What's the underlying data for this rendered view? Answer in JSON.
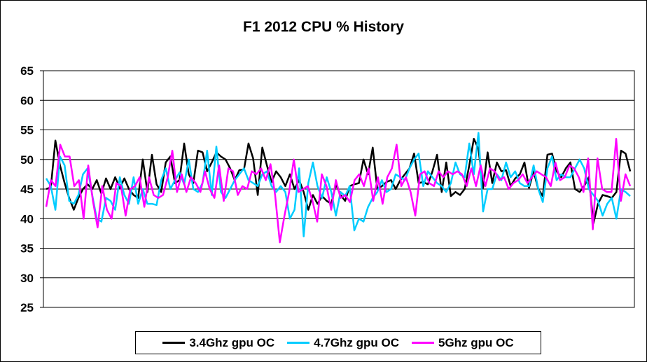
{
  "chart_data": {
    "type": "line",
    "title": "F1 2012 CPU % History",
    "xlabel": "",
    "ylabel": "",
    "ylim": [
      25,
      65
    ],
    "yticks": [
      25,
      30,
      35,
      40,
      45,
      50,
      55,
      60,
      65
    ],
    "grid": true,
    "legend_position": "bottom",
    "series": [
      {
        "name": "3.4Ghz gpu OC",
        "color": "#000000",
        "values": [
          45.0,
          45.3,
          53.2,
          49.0,
          46.0,
          43.5,
          41.5,
          43.5,
          45.0,
          45.8,
          45.0,
          46.5,
          44.2,
          46.8,
          45.0,
          47.0,
          45.2,
          46.8,
          45.0,
          44.0,
          43.5,
          50.0,
          44.5,
          50.8,
          45.8,
          44.5,
          49.5,
          50.5,
          46.0,
          46.5,
          52.7,
          47.5,
          46.0,
          51.5,
          51.2,
          48.0,
          49.5,
          51.2,
          50.5,
          50.0,
          48.5,
          46.5,
          48.2,
          48.3,
          52.7,
          50.2,
          44.0,
          52.0,
          49.0,
          46.2,
          48.0,
          47.0,
          45.5,
          47.5,
          45.0,
          46.5,
          44.5,
          41.5,
          44.0,
          42.5,
          43.8,
          43.0,
          42.5,
          45.8,
          44.0,
          43.0,
          45.5,
          45.8,
          46.0,
          50.0,
          47.5,
          52.0,
          45.0,
          45.5,
          46.2,
          46.5,
          45.0,
          46.5,
          47.5,
          48.5,
          51.0,
          46.0,
          46.2,
          45.8,
          48.0,
          50.8,
          44.5,
          49.5,
          43.8,
          44.5,
          44.0,
          45.0,
          49.0,
          53.5,
          51.8,
          45.2,
          51.2,
          46.0,
          49.5,
          48.0,
          48.2,
          45.5,
          46.8,
          47.5,
          49.5,
          45.2,
          48.0,
          45.0,
          43.8,
          50.8,
          51.0,
          48.0,
          47.0,
          48.5,
          49.5,
          45.0,
          44.5,
          45.5,
          47.0,
          39.2,
          42.5,
          44.0,
          43.8,
          43.5,
          44.5,
          51.5,
          51.0,
          48.0
        ]
      },
      {
        "name": "4.7Ghz gpu OC",
        "color": "#00CCFF",
        "values": [
          46.8,
          45.5,
          41.5,
          50.5,
          49.0,
          43.0,
          42.5,
          44.0,
          47.5,
          48.5,
          44.0,
          40.0,
          39.5,
          43.5,
          43.0,
          41.5,
          47.0,
          44.0,
          42.5,
          47.0,
          42.5,
          45.0,
          42.5,
          42.5,
          42.3,
          46.5,
          48.5,
          45.0,
          46.5,
          47.8,
          45.8,
          50.0,
          45.0,
          44.5,
          46.0,
          51.5,
          44.0,
          52.2,
          44.5,
          43.5,
          45.0,
          46.5,
          47.5,
          48.5,
          46.5,
          46.0,
          45.5,
          47.5,
          48.0,
          45.5,
          44.5,
          45.5,
          44.5,
          40.0,
          41.5,
          48.5,
          37.0,
          46.0,
          49.5,
          45.5,
          43.5,
          47.0,
          44.5,
          40.5,
          44.5,
          43.8,
          45.5,
          38.0,
          40.0,
          39.5,
          42.0,
          43.5,
          44.5,
          46.5,
          44.5,
          45.0,
          47.5,
          47.0,
          46.5,
          48.5,
          50.0,
          51.0,
          45.5,
          48.0,
          47.0,
          46.0,
          45.5,
          44.5,
          46.0,
          49.5,
          47.5,
          47.0,
          52.7,
          47.5,
          54.5,
          41.2,
          45.0,
          45.0,
          47.5,
          46.5,
          49.5,
          47.0,
          48.0,
          46.0,
          45.5,
          45.5,
          49.0,
          45.0,
          42.8,
          48.5,
          50.5,
          46.5,
          47.5,
          47.0,
          47.0,
          48.5,
          50.0,
          48.5,
          45.0,
          44.0,
          43.0,
          40.5,
          42.5,
          43.5,
          40.0,
          45.0,
          44.5,
          43.8
        ]
      },
      {
        "name": "5Ghz gpu OC",
        "color": "#FF00FF",
        "values": [
          42.0,
          46.5,
          45.5,
          52.5,
          50.5,
          50.5,
          45.5,
          46.5,
          40.0,
          49.0,
          43.0,
          38.5,
          45.5,
          41.5,
          40.0,
          46.0,
          45.5,
          40.5,
          45.0,
          45.5,
          47.0,
          42.0,
          47.0,
          44.0,
          43.5,
          44.0,
          47.0,
          51.5,
          44.5,
          47.5,
          44.5,
          47.0,
          46.0,
          44.5,
          48.0,
          45.0,
          43.5,
          49.0,
          43.0,
          48.5,
          48.0,
          44.0,
          45.5,
          45.0,
          48.0,
          47.5,
          48.5,
          46.5,
          49.2,
          44.0,
          36.0,
          40.5,
          44.5,
          50.0,
          44.5,
          45.0,
          45.5,
          43.0,
          39.5,
          47.5,
          45.5,
          41.5,
          46.5,
          43.5,
          44.0,
          42.8,
          46.5,
          47.5,
          45.5,
          48.5,
          43.0,
          47.0,
          42.5,
          47.0,
          48.5,
          52.5,
          45.5,
          47.0,
          44.5,
          40.5,
          47.5,
          48.0,
          46.0,
          45.5,
          48.0,
          47.0,
          48.0,
          47.5,
          48.0,
          47.5,
          45.5,
          48.5,
          45.5,
          49.0,
          45.5,
          48.5,
          48.0,
          46.5,
          47.0,
          45.0,
          46.0,
          46.5,
          47.5,
          46.0,
          47.0,
          48.0,
          47.5,
          47.0,
          45.5,
          49.5,
          46.5,
          47.0,
          49.0,
          48.5,
          47.0,
          44.5,
          50.2,
          38.2,
          50.2,
          45.0,
          44.5,
          44.5,
          53.5,
          43.0,
          47.5,
          45.5
        ]
      }
    ]
  }
}
